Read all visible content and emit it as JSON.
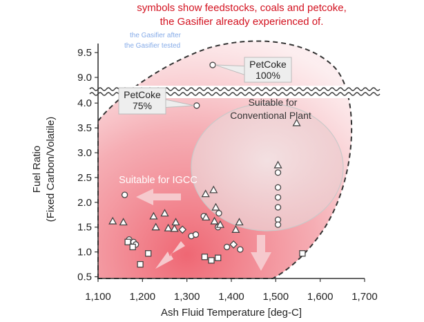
{
  "captions": {
    "red_line1": "symbols show feedstocks, coals and petcoke,",
    "red_line2": "the Gasifier already experienced of.",
    "blue_fragments": [
      "the Gasifier after",
      "the Gasifier tested"
    ]
  },
  "chart_data": {
    "type": "scatter",
    "xlabel": "Ash Fluid Temperature [deg-C]",
    "ylabel_line1": "Fuel Ratio",
    "ylabel_line2": "(Fixed Carbon/Volatile)",
    "xlim": [
      1100,
      1700
    ],
    "x_ticks": [
      "1,100",
      "1,200",
      "1,300",
      "1,400",
      "1,500",
      "1,600",
      "1,700"
    ],
    "x_tick_values": [
      1100,
      1200,
      1300,
      1400,
      1500,
      1600,
      1700
    ],
    "y_ticks_lower": [
      "0.5",
      "1.0",
      "1.5",
      "2.0",
      "2.5",
      "3.0",
      "3.5",
      "4.0"
    ],
    "y_tick_values_lower": [
      0.5,
      1.0,
      1.5,
      2.0,
      2.5,
      3.0,
      3.5,
      4.0
    ],
    "y_ticks_upper": [
      "9.0",
      "9.5"
    ],
    "y_tick_values_upper": [
      9.0,
      9.5
    ],
    "axis_break_between": [
      4.2,
      8.7
    ],
    "colors": {
      "region_fill": "#f17f8a",
      "conventional_fill": "#f2d8da",
      "arrow": "#f6c9cd",
      "callout_fill": "#eeeeee",
      "marker_stroke": "#444444",
      "axis": "#333333"
    },
    "region_labels": {
      "igcc": "Suitable for IGCC",
      "conventional_line1": "Suitable for",
      "conventional_line2": "Conventional Plant"
    },
    "callouts": [
      {
        "name": "petcoke-100",
        "line1": "PetCoke",
        "line2": "100%",
        "target": [
          1358,
          9.25
        ]
      },
      {
        "name": "petcoke-75",
        "line1": "PetCoke",
        "line2": "75%",
        "target": [
          1322,
          3.95
        ]
      }
    ],
    "series": [
      {
        "marker": "circle",
        "points": [
          [
            1358,
            9.25
          ],
          [
            1322,
            3.95
          ],
          [
            1160,
            2.15
          ],
          [
            1170,
            1.25
          ],
          [
            1180,
            1.2
          ],
          [
            1185,
            1.15
          ],
          [
            1310,
            1.32
          ],
          [
            1320,
            1.35
          ],
          [
            1338,
            1.72
          ],
          [
            1372,
            1.78
          ],
          [
            1370,
            1.5
          ],
          [
            1390,
            1.1
          ],
          [
            1420,
            1.05
          ],
          [
            1505,
            2.3
          ],
          [
            1505,
            2.1
          ],
          [
            1505,
            1.9
          ],
          [
            1505,
            1.65
          ],
          [
            1505,
            1.55
          ],
          [
            1505,
            2.6
          ]
        ]
      },
      {
        "marker": "triangle",
        "points": [
          [
            1547,
            3.6
          ],
          [
            1505,
            2.75
          ],
          [
            1133,
            1.62
          ],
          [
            1157,
            1.6
          ],
          [
            1225,
            1.72
          ],
          [
            1250,
            1.78
          ],
          [
            1275,
            1.6
          ],
          [
            1230,
            1.5
          ],
          [
            1258,
            1.48
          ],
          [
            1272,
            1.47
          ],
          [
            1342,
            2.17
          ],
          [
            1360,
            2.25
          ],
          [
            1343,
            1.7
          ],
          [
            1365,
            1.9
          ],
          [
            1362,
            1.62
          ],
          [
            1375,
            1.55
          ],
          [
            1418,
            1.6
          ],
          [
            1410,
            1.45
          ]
        ]
      },
      {
        "marker": "square",
        "points": [
          [
            1167,
            1.2
          ],
          [
            1178,
            1.1
          ],
          [
            1195,
            0.75
          ],
          [
            1213,
            0.97
          ],
          [
            1340,
            0.9
          ],
          [
            1355,
            0.83
          ],
          [
            1370,
            0.88
          ],
          [
            1560,
            0.97
          ]
        ]
      },
      {
        "marker": "diamond",
        "points": [
          [
            1405,
            1.15
          ],
          [
            1290,
            1.45
          ]
        ]
      }
    ],
    "arrows": [
      "left-from-igcc-label",
      "down-left",
      "down"
    ]
  }
}
